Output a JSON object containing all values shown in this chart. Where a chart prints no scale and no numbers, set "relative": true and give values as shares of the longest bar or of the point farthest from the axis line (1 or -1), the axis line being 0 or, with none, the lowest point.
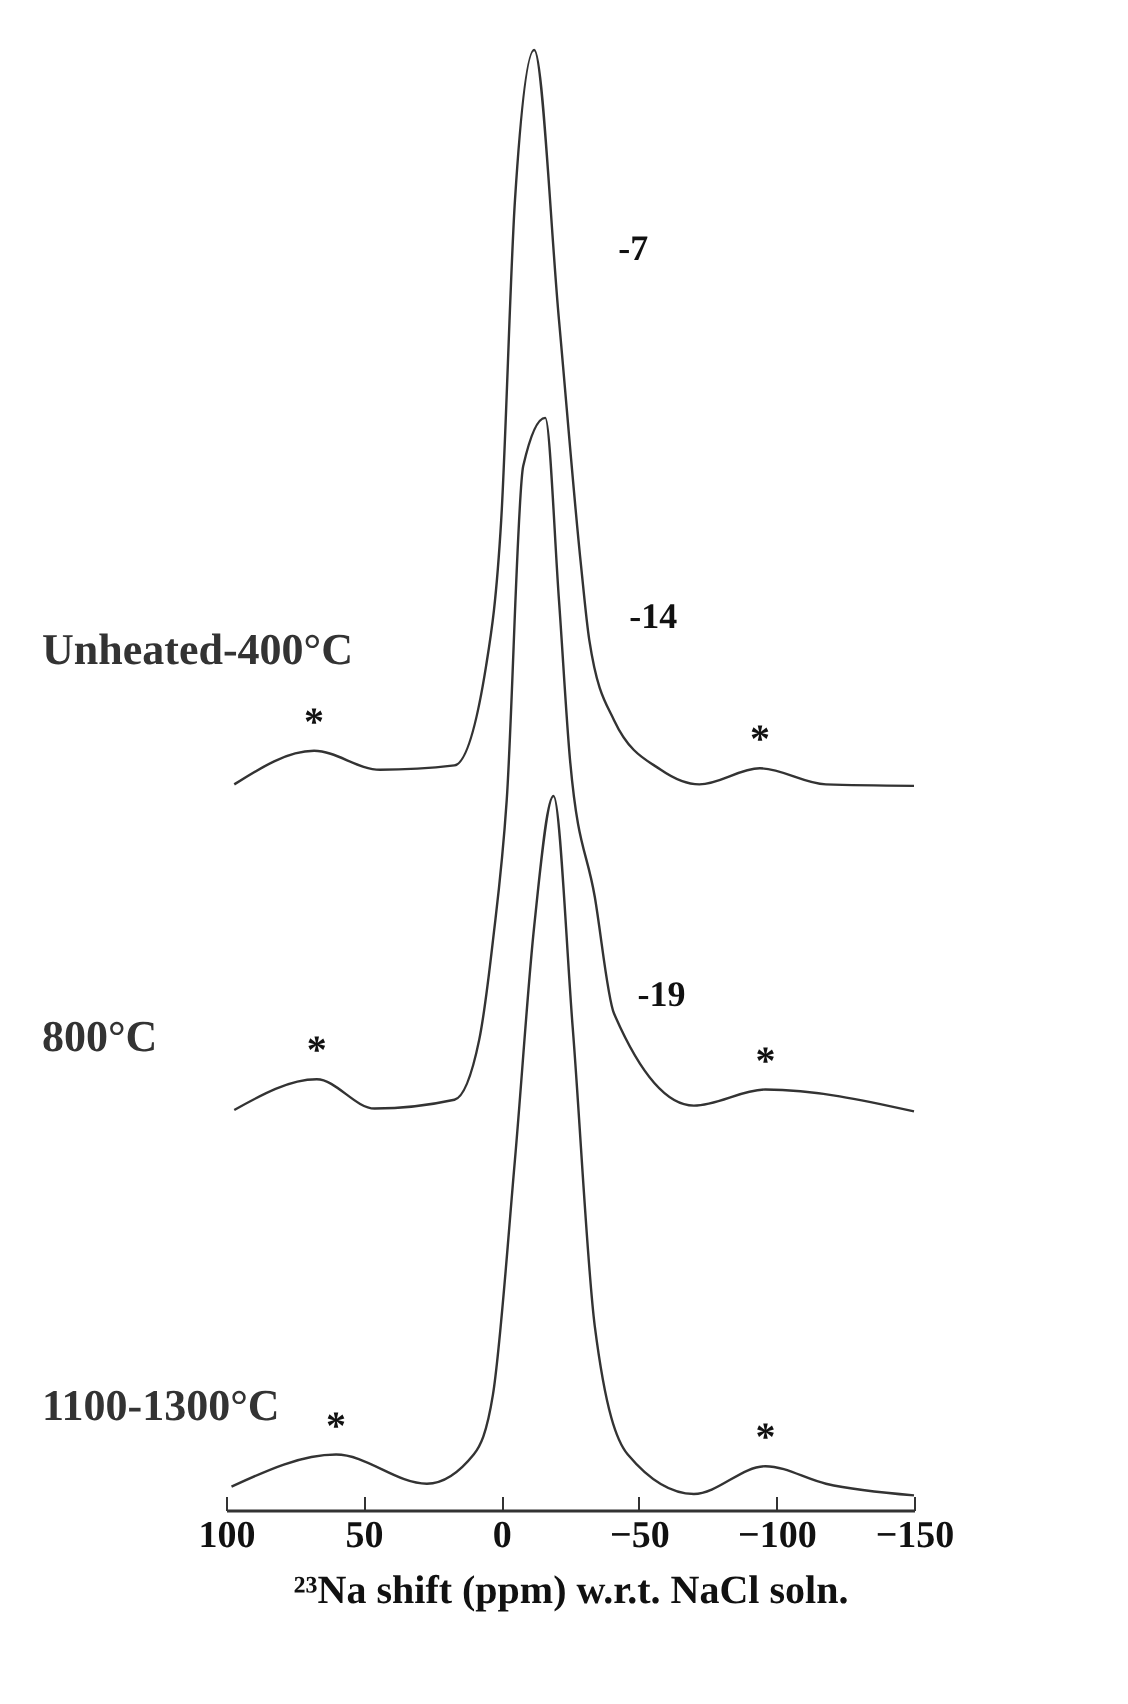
{
  "chart_data": {
    "type": "line",
    "relative": true,
    "xlabel": "²³Na shift (ppm) w.r.t. NaCl soln.",
    "xlim": [
      100,
      -150
    ],
    "xticks": [
      100,
      50,
      0,
      -50,
      -100,
      -150
    ],
    "grid": false,
    "legend": false,
    "marker": "none",
    "line_style": "solid",
    "series": [
      {
        "name": "Unheated-400°C",
        "color": "#333333",
        "x": [
          97,
          68,
          44,
          17,
          5.5,
          0,
          -5,
          -12,
          -21,
          -29,
          -32,
          -41,
          -58,
          -72,
          -94,
          -118,
          -150
        ],
        "values": [
          0.497,
          0.52,
          0.507,
          0.51,
          0.578,
          0.678,
          0.897,
          1,
          0.815,
          0.647,
          0.596,
          0.541,
          0.507,
          0.497,
          0.508,
          0.497,
          0.496
        ]
      },
      {
        "name": "800°C",
        "color": "#333333",
        "x": [
          97,
          67,
          46,
          17,
          8,
          3,
          -2,
          -8,
          -16,
          -21,
          -25,
          -34,
          -41,
          -70,
          -96,
          -150
        ],
        "values": [
          0.274,
          0.295,
          0.275,
          0.281,
          0.322,
          0.39,
          0.486,
          0.715,
          0.748,
          0.623,
          0.514,
          0.42,
          0.34,
          0.277,
          0.288,
          0.273
        ]
      },
      {
        "name": "1100-1300°C",
        "color": "#333333",
        "x": [
          98,
          60,
          27,
          10,
          3,
          -5,
          -12,
          -19,
          -26,
          -34,
          -46,
          -70,
          -96,
          -118,
          -150
        ],
        "values": [
          0.016,
          0.038,
          0.018,
          0.038,
          0.079,
          0.24,
          0.4,
          0.489,
          0.33,
          0.126,
          0.038,
          0.011,
          0.03,
          0.018,
          0.01
        ]
      }
    ],
    "annotations": [
      "-7",
      "-14",
      "-19",
      {
        "text": "*",
        "x": 68,
        "y": 0.52
      },
      {
        "text": "*",
        "x": -94,
        "y": 0.508
      },
      {
        "text": "*",
        "x": 67,
        "y": 0.295
      },
      {
        "text": "*",
        "x": -96,
        "y": 0.288
      },
      {
        "text": "*",
        "x": 60,
        "y": 0.038
      },
      {
        "text": "*",
        "x": -96,
        "y": 0.03
      }
    ]
  }
}
